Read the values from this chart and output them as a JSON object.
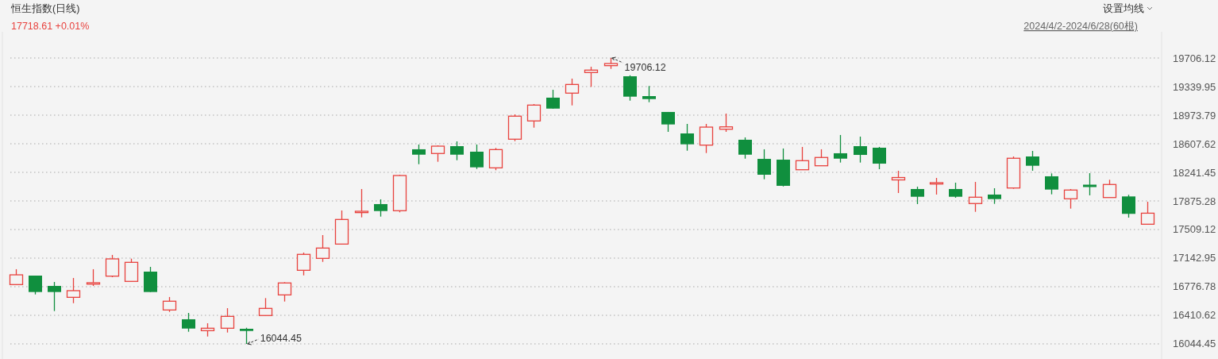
{
  "chart_data": {
    "type": "candlestick",
    "title": "恒生指数(日线)",
    "subtitle": "17718.61 +0.01%",
    "annotations": [
      "19706.12",
      "16044.45",
      "设置均线",
      "2024/4/2-2024/6/28(60根)"
    ],
    "categories": [
      null,
      null,
      null,
      null,
      null,
      null,
      null,
      null,
      null,
      null,
      null,
      null,
      null,
      null,
      null,
      null,
      null,
      null,
      null,
      null,
      null,
      null,
      null,
      null,
      null,
      null,
      null,
      null,
      null,
      null,
      null,
      null,
      null,
      null,
      null,
      null,
      null,
      null,
      null,
      null,
      null,
      null,
      null,
      null,
      null,
      null,
      null,
      null,
      null,
      null,
      null,
      null,
      null,
      null,
      null,
      null,
      null,
      null,
      null,
      null
    ],
    "ohlc": [
      [
        16804,
        17001,
        16804,
        16929
      ],
      [
        16919,
        16919,
        16678,
        16709
      ],
      [
        16787,
        16838,
        16465,
        16709
      ],
      [
        16641,
        16889,
        16566,
        16726
      ],
      [
        16810,
        17001,
        16787,
        16828
      ],
      [
        16912,
        17184,
        16899,
        17133
      ],
      [
        16845,
        17136,
        16845,
        17089
      ],
      [
        16970,
        17031,
        16709,
        16709
      ],
      [
        16479,
        16645,
        16454,
        16591
      ],
      [
        16360,
        16441,
        16200,
        16241
      ],
      [
        16214,
        16309,
        16139,
        16245
      ],
      [
        16245,
        16502,
        16190,
        16397
      ],
      [
        16238,
        16251,
        16044.45,
        16210
      ],
      [
        16408,
        16631,
        16408,
        16499
      ],
      [
        16672,
        16835,
        16587,
        16825
      ],
      [
        16987,
        17214,
        16922,
        17191
      ],
      [
        17140,
        17438,
        17095,
        17272
      ],
      [
        17323,
        17753,
        17323,
        17638
      ],
      [
        17726,
        18028,
        17665,
        17743
      ],
      [
        17835,
        17896,
        17675,
        17746
      ],
      [
        17750,
        18211,
        17730,
        18201
      ],
      [
        18537,
        18598,
        18346,
        18468
      ],
      [
        18483,
        18587,
        18377,
        18577
      ],
      [
        18577,
        18638,
        18397,
        18468
      ],
      [
        18506,
        18598,
        18285,
        18306
      ],
      [
        18299,
        18554,
        18269,
        18533
      ],
      [
        18666,
        18984,
        18641,
        18961
      ],
      [
        18900,
        19116,
        18814,
        19103
      ],
      [
        19198,
        19299,
        19058,
        19058
      ],
      [
        19256,
        19442,
        19099,
        19367
      ],
      [
        19520,
        19594,
        19337,
        19551
      ],
      [
        19608,
        19706.12,
        19567,
        19635
      ],
      [
        19472,
        19485,
        19160,
        19211
      ],
      [
        19218,
        19347,
        19140,
        19180
      ],
      [
        19015,
        19015,
        18760,
        18855
      ],
      [
        18740,
        18862,
        18519,
        18601
      ],
      [
        18590,
        18862,
        18489,
        18821
      ],
      [
        18804,
        18994,
        18760,
        18814
      ],
      [
        18659,
        18689,
        18417,
        18468
      ],
      [
        18414,
        18537,
        18153,
        18211
      ],
      [
        18404,
        18547,
        18061,
        18069
      ],
      [
        18275,
        18567,
        18275,
        18391
      ],
      [
        18326,
        18537,
        18326,
        18432
      ],
      [
        18486,
        18720,
        18367,
        18417
      ],
      [
        18577,
        18699,
        18367,
        18465
      ],
      [
        18557,
        18567,
        18282,
        18353
      ],
      [
        18153,
        18262,
        17977,
        18167
      ],
      [
        18028,
        18058,
        17835,
        17929
      ],
      [
        18092,
        18170,
        17957,
        18109
      ],
      [
        18028,
        18109,
        17916,
        17929
      ],
      [
        17842,
        18119,
        17736,
        17923
      ],
      [
        17957,
        18038,
        17838,
        17899
      ],
      [
        18041,
        18445,
        18031,
        18422
      ],
      [
        18445,
        18516,
        18262,
        18326
      ],
      [
        18191,
        18228,
        17960,
        18021
      ],
      [
        17903,
        18028,
        17777,
        18015
      ],
      [
        18076,
        18231,
        17947,
        18061
      ],
      [
        17919,
        18147,
        17919,
        18086
      ],
      [
        17933,
        17954,
        17662,
        17710
      ],
      [
        17577,
        17865,
        17577,
        17718.61
      ]
    ],
    "colors": [
      "#e8423e",
      "#108f3e",
      "#108f3e",
      "#e8423e",
      "#e8423e",
      "#e8423e",
      "#e8423e",
      "#108f3e",
      "#e8423e",
      "#108f3e",
      "#e8423e",
      "#e8423e",
      "#108f3e",
      "#e8423e",
      "#e8423e",
      "#e8423e",
      "#e8423e",
      "#e8423e",
      "#e8423e",
      "#108f3e",
      "#e8423e",
      "#108f3e",
      "#e8423e",
      "#108f3e",
      "#108f3e",
      "#e8423e",
      "#e8423e",
      "#e8423e",
      "#108f3e",
      "#e8423e",
      "#e8423e",
      "#e8423e",
      "#108f3e",
      "#108f3e",
      "#108f3e",
      "#108f3e",
      "#e8423e",
      "#e8423e",
      "#108f3e",
      "#108f3e",
      "#108f3e",
      "#e8423e",
      "#e8423e",
      "#108f3e",
      "#108f3e",
      "#108f3e",
      "#e8423e",
      "#108f3e",
      "#e8423e",
      "#108f3e",
      "#e8423e",
      "#108f3e",
      "#e8423e",
      "#108f3e",
      "#108f3e",
      "#e8423e",
      "#108f3e",
      "#e8423e",
      "#108f3e",
      "#e8423e"
    ],
    "ylim": [
      15851,
      20042
    ],
    "yticks": [
      16044.45,
      16410.62,
      16776.78,
      17142.95,
      17509.12,
      17875.28,
      18241.45,
      18607.62,
      18973.79,
      19339.95,
      19706.12
    ],
    "grid": "y",
    "tick_labels": "y"
  }
}
